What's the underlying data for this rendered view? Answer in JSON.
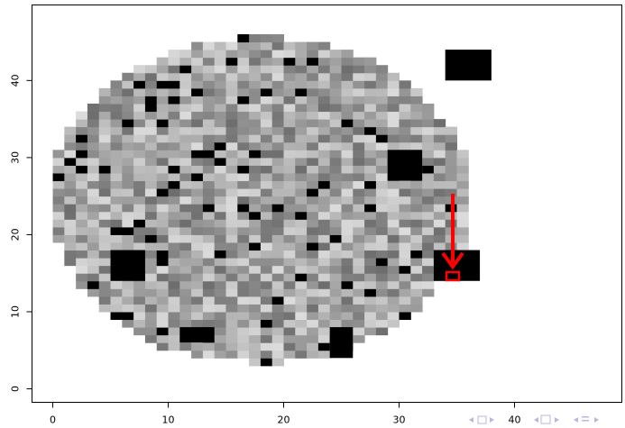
{
  "chart_data": {
    "type": "image",
    "xlim": [
      -1.8,
      49.3
    ],
    "xticks": [
      0,
      10,
      20,
      30,
      40
    ],
    "ylim": [
      -1.75,
      49.8
    ],
    "yticks": [
      0,
      10,
      20,
      30,
      40
    ]
  }
}
